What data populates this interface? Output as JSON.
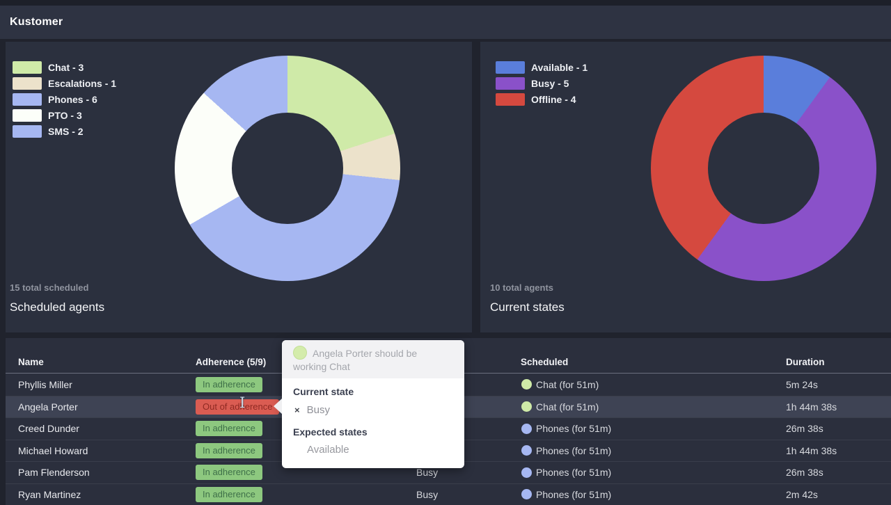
{
  "header": {
    "brand": "Kustomer"
  },
  "colors": {
    "chat": "#cfeaa8",
    "escalations": "#ece2cb",
    "phones": "#a6b7f2",
    "pto": "#fcfef9",
    "sms": "#a6b7f2",
    "available": "#5a7edb",
    "busy": "#8a51c9",
    "offline": "#d5493f",
    "badge_in_adherence": "#8dc87f",
    "badge_out_of_adherence": "#da5c52"
  },
  "panels": {
    "scheduled": {
      "legend": [
        {
          "label": "Chat - 3",
          "color": "#cfeaa8"
        },
        {
          "label": "Escalations - 1",
          "color": "#ece2cb"
        },
        {
          "label": "Phones - 6",
          "color": "#a6b7f2"
        },
        {
          "label": "PTO - 3",
          "color": "#fcfef9"
        },
        {
          "label": "SMS - 2",
          "color": "#a6b7f2"
        }
      ],
      "total": "15 total scheduled",
      "title": "Scheduled agents"
    },
    "states": {
      "legend": [
        {
          "label": "Available - 1",
          "color": "#5a7edb"
        },
        {
          "label": "Busy - 5",
          "color": "#8a51c9"
        },
        {
          "label": "Offline - 4",
          "color": "#d5493f"
        }
      ],
      "total": "10 total agents",
      "title": "Current states"
    }
  },
  "chart_data": [
    {
      "type": "pie",
      "donut": true,
      "title": "Scheduled agents",
      "subtitle": "15 total scheduled",
      "labels": [
        "Chat",
        "Escalations",
        "Phones",
        "PTO",
        "SMS"
      ],
      "values": [
        3,
        1,
        6,
        3,
        2
      ],
      "colors": [
        "#cfeaa8",
        "#ece2cb",
        "#a6b7f2",
        "#fcfef9",
        "#a6b7f2"
      ],
      "legend_position": "top-left"
    },
    {
      "type": "pie",
      "donut": true,
      "title": "Current states",
      "subtitle": "10 total agents",
      "labels": [
        "Available",
        "Busy",
        "Offline"
      ],
      "values": [
        1,
        5,
        4
      ],
      "colors": [
        "#5a7edb",
        "#8a51c9",
        "#d5493f"
      ],
      "legend_position": "top-left"
    }
  ],
  "table": {
    "headers": {
      "name": "Name",
      "adherence": "Adherence (5/9)",
      "state": "",
      "scheduled": "Scheduled",
      "duration": "Duration"
    },
    "rows": [
      {
        "name": "Phyllis Miller",
        "adherence": "In adherence",
        "adherence_type": "in",
        "state": "",
        "sched_label": "Chat (for 51m)",
        "sched_color": "#cfeaa8",
        "duration": "5m 24s",
        "highlight": false
      },
      {
        "name": "Angela Porter",
        "adherence": "Out of adherence",
        "adherence_type": "out",
        "state": "",
        "sched_label": "Chat (for 51m)",
        "sched_color": "#cfeaa8",
        "duration": "1h 44m 38s",
        "highlight": true
      },
      {
        "name": "Creed Dunder",
        "adherence": "In adherence",
        "adherence_type": "in",
        "state": "",
        "sched_label": "Phones (for 51m)",
        "sched_color": "#a6b7f2",
        "duration": "26m 38s",
        "highlight": false
      },
      {
        "name": "Michael Howard",
        "adherence": "In adherence",
        "adherence_type": "in",
        "state": "",
        "sched_label": "Phones (for 51m)",
        "sched_color": "#a6b7f2",
        "duration": "1h 44m 38s",
        "highlight": false
      },
      {
        "name": "Pam Flenderson",
        "adherence": "In adherence",
        "adherence_type": "in",
        "state": "Busy",
        "sched_label": "Phones (for 51m)",
        "sched_color": "#a6b7f2",
        "duration": "26m 38s",
        "highlight": false
      },
      {
        "name": "Ryan Martinez",
        "adherence": "In adherence",
        "adherence_type": "in",
        "state": "Busy",
        "sched_label": "Phones (for 51m)",
        "sched_color": "#a6b7f2",
        "duration": "2m 42s",
        "highlight": false
      }
    ]
  },
  "tooltip": {
    "headline": "Angela Porter should be working Chat",
    "dot_color": "#d4ecab",
    "current_state_label": "Current state",
    "current_state_value": "Busy",
    "remove_icon": "×",
    "expected_states_label": "Expected states",
    "expected_states": [
      "Available"
    ]
  }
}
